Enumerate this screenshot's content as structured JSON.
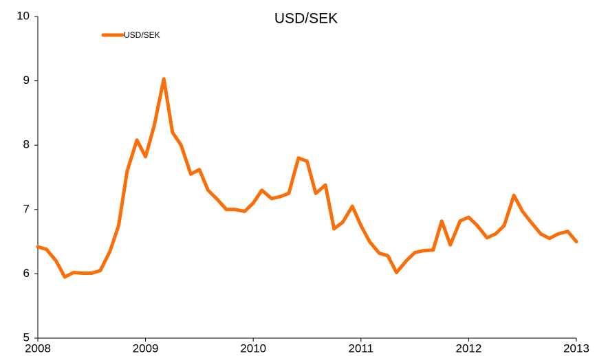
{
  "chart_data": {
    "type": "line",
    "title": "USD/SEK",
    "x": [
      2008.0,
      2008.08,
      2008.17,
      2008.25,
      2008.33,
      2008.42,
      2008.5,
      2008.58,
      2008.67,
      2008.75,
      2008.83,
      2008.92,
      2009.0,
      2009.08,
      2009.17,
      2009.25,
      2009.33,
      2009.42,
      2009.5,
      2009.58,
      2009.67,
      2009.75,
      2009.83,
      2009.92,
      2010.0,
      2010.08,
      2010.17,
      2010.25,
      2010.33,
      2010.42,
      2010.5,
      2010.58,
      2010.67,
      2010.75,
      2010.83,
      2010.92,
      2011.0,
      2011.08,
      2011.17,
      2011.25,
      2011.33,
      2011.42,
      2011.5,
      2011.58,
      2011.67,
      2011.75,
      2011.83,
      2011.92,
      2012.0,
      2012.08,
      2012.17,
      2012.25,
      2012.33,
      2012.42,
      2012.5,
      2012.58,
      2012.67,
      2012.75,
      2012.83,
      2012.92,
      2013.0
    ],
    "series": [
      {
        "name": "USD/SEK",
        "color": "#fa6e0a",
        "values": [
          6.42,
          6.38,
          6.2,
          5.95,
          6.02,
          6.01,
          6.01,
          6.05,
          6.35,
          6.75,
          7.6,
          8.08,
          7.82,
          8.3,
          9.03,
          8.2,
          8.0,
          7.55,
          7.62,
          7.3,
          7.15,
          7.0,
          7.0,
          6.97,
          7.1,
          7.3,
          7.17,
          7.2,
          7.25,
          7.8,
          7.75,
          7.25,
          7.38,
          6.7,
          6.8,
          7.05,
          6.75,
          6.5,
          6.32,
          6.28,
          6.02,
          6.2,
          6.33,
          6.36,
          6.37,
          6.82,
          6.45,
          6.82,
          6.88,
          6.75,
          6.56,
          6.62,
          6.75,
          7.22,
          6.97,
          6.8,
          6.62,
          6.55,
          6.62,
          6.66,
          6.5
        ]
      }
    ],
    "xlim": [
      2008,
      2013
    ],
    "xticks": [
      2008,
      2009,
      2010,
      2011,
      2012,
      2013
    ],
    "ylim": [
      5,
      10
    ],
    "yticks": [
      5,
      6,
      7,
      8,
      9,
      10
    ],
    "legend": "top-left"
  }
}
